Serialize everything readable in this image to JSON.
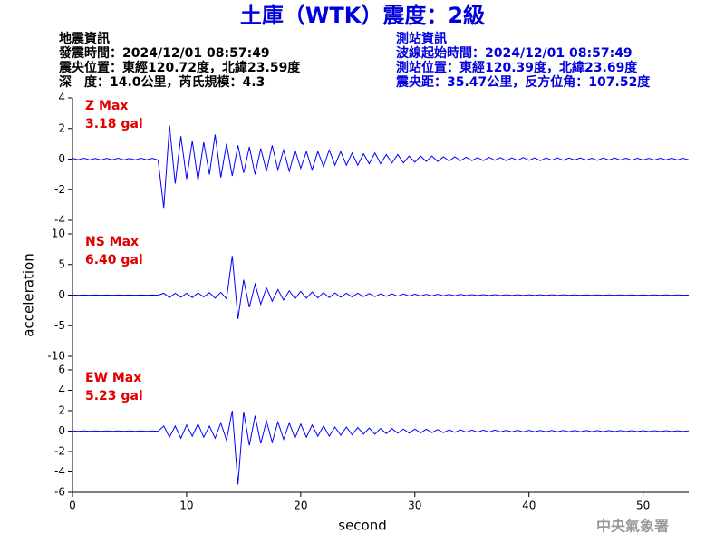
{
  "header": {
    "title": "土庫（WTK）震度：2級",
    "left": [
      "地震資訊",
      "發震時間：2024/12/01 08:57:49",
      "震央位置：東經120.72度，北緯23.59度",
      "深　度：14.0公里，芮氏規模：4.3"
    ],
    "right": [
      "測站資訊",
      "波線起始時間：2024/12/01 08:57:49",
      "測站位置：東經120.39度，北緯23.69度",
      "震央距：35.47公里，反方位角：107.52度"
    ]
  },
  "footer": "中央氣象署",
  "chart_data": [
    {
      "type": "line",
      "annotations": [
        "Z Max",
        "3.18 gal"
      ],
      "color": "#0000ff",
      "xlim": [
        0,
        54
      ],
      "ylim": [
        -4,
        4
      ],
      "yticks": [
        -4,
        -2,
        0,
        2,
        4
      ],
      "x": [
        0,
        0.5,
        1,
        1.5,
        2,
        2.5,
        3,
        3.5,
        4,
        4.5,
        5,
        5.5,
        6,
        6.5,
        7,
        7.5,
        8,
        8.5,
        9,
        9.5,
        10,
        10.5,
        11,
        11.5,
        12,
        12.5,
        13,
        13.5,
        14,
        14.5,
        15,
        15.5,
        16,
        16.5,
        17,
        17.5,
        18,
        18.5,
        19,
        19.5,
        20,
        20.5,
        21,
        21.5,
        22,
        22.5,
        23,
        23.5,
        24,
        24.5,
        25,
        25.5,
        26,
        26.5,
        27,
        27.5,
        28,
        28.5,
        29,
        29.5,
        30,
        30.5,
        31,
        31.5,
        32,
        32.5,
        33,
        33.5,
        34,
        34.5,
        35,
        35.5,
        36,
        36.5,
        37,
        37.5,
        38,
        38.5,
        39,
        39.5,
        40,
        40.5,
        41,
        41.5,
        42,
        42.5,
        43,
        43.5,
        44,
        44.5,
        45,
        45.5,
        46,
        46.5,
        47,
        47.5,
        48,
        48.5,
        49,
        49.5,
        50,
        50.5,
        51,
        51.5,
        52,
        52.5,
        53,
        53.5,
        54
      ],
      "values": [
        0.05,
        -0.04,
        0.06,
        -0.05,
        0.04,
        -0.06,
        0.05,
        -0.04,
        0.06,
        -0.05,
        0.04,
        -0.05,
        0.06,
        -0.04,
        0.05,
        -0.06,
        -3.18,
        2.2,
        -1.6,
        1.5,
        -1.3,
        1.2,
        -1.4,
        1.1,
        -1.0,
        1.6,
        -1.2,
        1.0,
        -1.1,
        0.9,
        -0.9,
        0.8,
        -1.0,
        0.7,
        -0.8,
        0.9,
        -0.7,
        0.6,
        -0.8,
        0.6,
        -0.6,
        0.5,
        -0.7,
        0.5,
        -0.5,
        0.6,
        -0.4,
        0.5,
        -0.4,
        0.4,
        -0.4,
        0.35,
        -0.3,
        0.4,
        -0.3,
        0.3,
        -0.25,
        0.3,
        -0.25,
        0.2,
        -0.2,
        0.2,
        -0.15,
        0.2,
        -0.15,
        0.15,
        -0.12,
        0.15,
        -0.1,
        0.12,
        -0.1,
        0.1,
        -0.1,
        0.12,
        -0.08,
        0.1,
        -0.1,
        0.08,
        -0.08,
        0.1,
        -0.08,
        0.08,
        -0.1,
        0.08,
        -0.07,
        0.08,
        -0.08,
        0.07,
        -0.06,
        0.08,
        -0.07,
        0.06,
        -0.08,
        0.07,
        -0.06,
        0.07,
        -0.06,
        0.06,
        -0.07,
        0.06,
        -0.06,
        0.05,
        -0.06,
        0.06,
        -0.05,
        0.06,
        -0.05,
        0.05,
        -0.04
      ]
    },
    {
      "type": "line",
      "annotations": [
        "NS Max",
        "6.40 gal"
      ],
      "color": "#0000ff",
      "ylabel": "acceleration",
      "xlim": [
        0,
        54
      ],
      "ylim": [
        -10,
        10
      ],
      "yticks": [
        -10,
        -5,
        0,
        5,
        10
      ],
      "x": [
        0,
        0.5,
        1,
        1.5,
        2,
        2.5,
        3,
        3.5,
        4,
        4.5,
        5,
        5.5,
        6,
        6.5,
        7,
        7.5,
        8,
        8.5,
        9,
        9.5,
        10,
        10.5,
        11,
        11.5,
        12,
        12.5,
        13,
        13.5,
        14,
        14.5,
        15,
        15.5,
        16,
        16.5,
        17,
        17.5,
        18,
        18.5,
        19,
        19.5,
        20,
        20.5,
        21,
        21.5,
        22,
        22.5,
        23,
        23.5,
        24,
        24.5,
        25,
        25.5,
        26,
        26.5,
        27,
        27.5,
        28,
        28.5,
        29,
        29.5,
        30,
        30.5,
        31,
        31.5,
        32,
        32.5,
        33,
        33.5,
        34,
        34.5,
        35,
        35.5,
        36,
        36.5,
        37,
        37.5,
        38,
        38.5,
        39,
        39.5,
        40,
        40.5,
        41,
        41.5,
        42,
        42.5,
        43,
        43.5,
        44,
        44.5,
        45,
        45.5,
        46,
        46.5,
        47,
        47.5,
        48,
        48.5,
        49,
        49.5,
        50,
        50.5,
        51,
        51.5,
        52,
        52.5,
        53,
        53.5,
        54
      ],
      "values": [
        0.02,
        -0.02,
        0.02,
        -0.02,
        0.02,
        -0.02,
        0.02,
        -0.02,
        0.02,
        -0.02,
        0.02,
        -0.02,
        0.02,
        -0.02,
        0.02,
        -0.02,
        0.3,
        -0.4,
        0.3,
        -0.35,
        0.3,
        -0.4,
        0.35,
        -0.3,
        0.4,
        -0.5,
        0.45,
        -0.6,
        6.4,
        -3.9,
        2.5,
        -2.0,
        1.8,
        -1.5,
        1.2,
        -1.0,
        0.9,
        -0.8,
        0.7,
        -0.6,
        0.6,
        -0.5,
        0.5,
        -0.45,
        0.4,
        -0.4,
        0.35,
        -0.35,
        0.3,
        -0.3,
        0.3,
        -0.25,
        0.25,
        -0.25,
        0.2,
        -0.2,
        0.2,
        -0.18,
        0.18,
        -0.15,
        0.15,
        -0.15,
        0.12,
        -0.12,
        0.12,
        -0.1,
        0.1,
        -0.1,
        0.1,
        -0.08,
        0.08,
        -0.08,
        0.08,
        -0.07,
        0.07,
        -0.07,
        0.06,
        -0.06,
        0.06,
        -0.06,
        0.06,
        -0.05,
        0.05,
        -0.05,
        0.05,
        -0.05,
        0.05,
        -0.04,
        0.04,
        -0.04,
        0.04,
        -0.04,
        0.04,
        -0.04,
        0.04,
        -0.03,
        0.03,
        -0.03,
        0.03,
        -0.03,
        0.03,
        -0.03,
        0.03,
        -0.03,
        0.03,
        -0.03,
        0.03,
        -0.02,
        0.02
      ]
    },
    {
      "type": "line",
      "annotations": [
        "EW Max",
        "5.23 gal"
      ],
      "color": "#0000ff",
      "xlabel": "second",
      "xlim": [
        0,
        54
      ],
      "xticks": [
        0,
        10,
        20,
        30,
        40,
        50
      ],
      "ylim": [
        -6,
        6
      ],
      "yticks": [
        -6,
        -4,
        -2,
        0,
        2,
        4,
        6
      ],
      "x": [
        0,
        0.5,
        1,
        1.5,
        2,
        2.5,
        3,
        3.5,
        4,
        4.5,
        5,
        5.5,
        6,
        6.5,
        7,
        7.5,
        8,
        8.5,
        9,
        9.5,
        10,
        10.5,
        11,
        11.5,
        12,
        12.5,
        13,
        13.5,
        14,
        14.5,
        15,
        15.5,
        16,
        16.5,
        17,
        17.5,
        18,
        18.5,
        19,
        19.5,
        20,
        20.5,
        21,
        21.5,
        22,
        22.5,
        23,
        23.5,
        24,
        24.5,
        25,
        25.5,
        26,
        26.5,
        27,
        27.5,
        28,
        28.5,
        29,
        29.5,
        30,
        30.5,
        31,
        31.5,
        32,
        32.5,
        33,
        33.5,
        34,
        34.5,
        35,
        35.5,
        36,
        36.5,
        37,
        37.5,
        38,
        38.5,
        39,
        39.5,
        40,
        40.5,
        41,
        41.5,
        42,
        42.5,
        43,
        43.5,
        44,
        44.5,
        45,
        45.5,
        46,
        46.5,
        47,
        47.5,
        48,
        48.5,
        49,
        49.5,
        50,
        50.5,
        51,
        51.5,
        52,
        52.5,
        53,
        53.5,
        54
      ],
      "values": [
        0.02,
        -0.02,
        0.02,
        -0.02,
        0.02,
        -0.02,
        0.02,
        -0.02,
        0.02,
        -0.02,
        0.02,
        -0.02,
        0.02,
        -0.02,
        0.02,
        -0.02,
        0.5,
        -0.6,
        0.5,
        -0.7,
        0.6,
        -0.5,
        0.7,
        -0.6,
        0.5,
        -0.7,
        0.8,
        -0.9,
        2.0,
        -5.23,
        1.9,
        -1.4,
        1.5,
        -1.2,
        1.0,
        -1.1,
        0.9,
        -0.8,
        0.8,
        -0.7,
        0.7,
        -0.6,
        0.6,
        -0.5,
        0.5,
        -0.5,
        0.4,
        -0.4,
        0.4,
        -0.35,
        0.35,
        -0.3,
        0.3,
        -0.3,
        0.25,
        -0.25,
        0.25,
        -0.2,
        0.2,
        -0.2,
        0.2,
        -0.18,
        0.18,
        -0.15,
        0.15,
        -0.15,
        0.12,
        -0.12,
        0.12,
        -0.1,
        0.1,
        -0.1,
        0.1,
        -0.1,
        0.1,
        -0.08,
        0.08,
        -0.08,
        0.08,
        -0.08,
        0.08,
        -0.07,
        0.07,
        -0.07,
        0.07,
        -0.06,
        0.06,
        -0.06,
        0.06,
        -0.06,
        0.06,
        -0.05,
        0.05,
        -0.05,
        0.05,
        -0.05,
        0.05,
        -0.04,
        0.04,
        -0.04,
        0.04,
        -0.04,
        0.04,
        -0.04,
        0.04,
        -0.04,
        0.03,
        -0.03,
        0.03
      ]
    }
  ]
}
